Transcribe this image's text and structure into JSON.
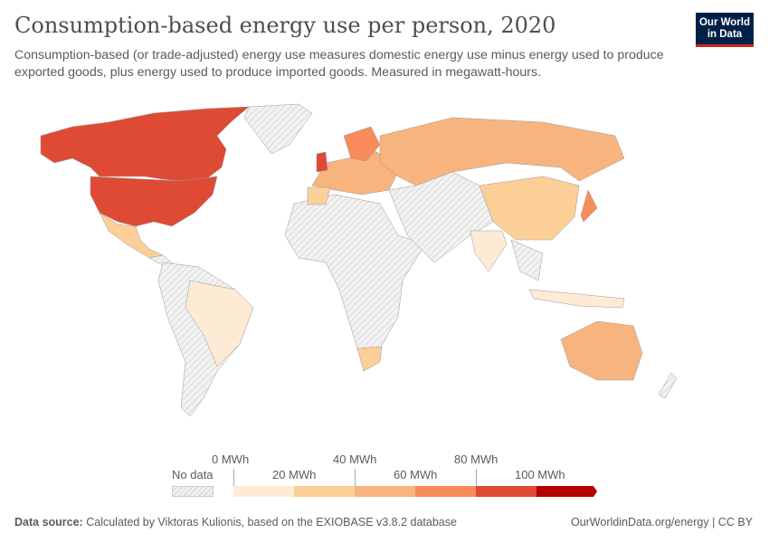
{
  "header": {
    "title": "Consumption-based energy use per person, 2020",
    "subtitle": "Consumption-based (or trade-adjusted) energy use measures domestic energy use minus energy used to produce exported goods, plus energy used to produce imported goods. Measured in megawatt-hours.",
    "logo": "Our World in Data"
  },
  "legend": {
    "no_data": "No data",
    "ticks": [
      "0 MWh",
      "20 MWh",
      "40 MWh",
      "60 MWh",
      "80 MWh",
      "100 MWh"
    ],
    "bin_colors": [
      "#fdebd6",
      "#fbcf97",
      "#f8b47e",
      "#f88c5a",
      "#df4a35",
      "#b40000"
    ],
    "no_data_color": "#e6e6e6"
  },
  "map": {
    "fills": {
      "canada": "#df4a35",
      "usa": "#df4a35",
      "mexico": "#fbcf97",
      "greenland": "nodata",
      "brazil": "#fdebd6",
      "south_america_other": "nodata",
      "africa": "nodata",
      "south_africa": "#fbcf97",
      "europe": "#f8b47e",
      "scandinavia": "#f88c5a",
      "iberia": "#fbcf97",
      "uk": "#df4a35",
      "russia": "#f8b47e",
      "middle_east": "nodata",
      "china": "#fbcf97",
      "india": "#fdebd6",
      "se_asia": "nodata",
      "indonesia": "#fdebd6",
      "japan": "#f88c5a",
      "australia": "#f8b47e",
      "new_zealand": "nodata",
      "central_america": "nodata"
    }
  },
  "footer": {
    "source_label": "Data source:",
    "source_text": "Calculated by Viktoras Kulionis, based on the EXIOBASE v3.8.2 database",
    "link": "OurWorldinData.org/energy",
    "license": "| CC BY"
  }
}
